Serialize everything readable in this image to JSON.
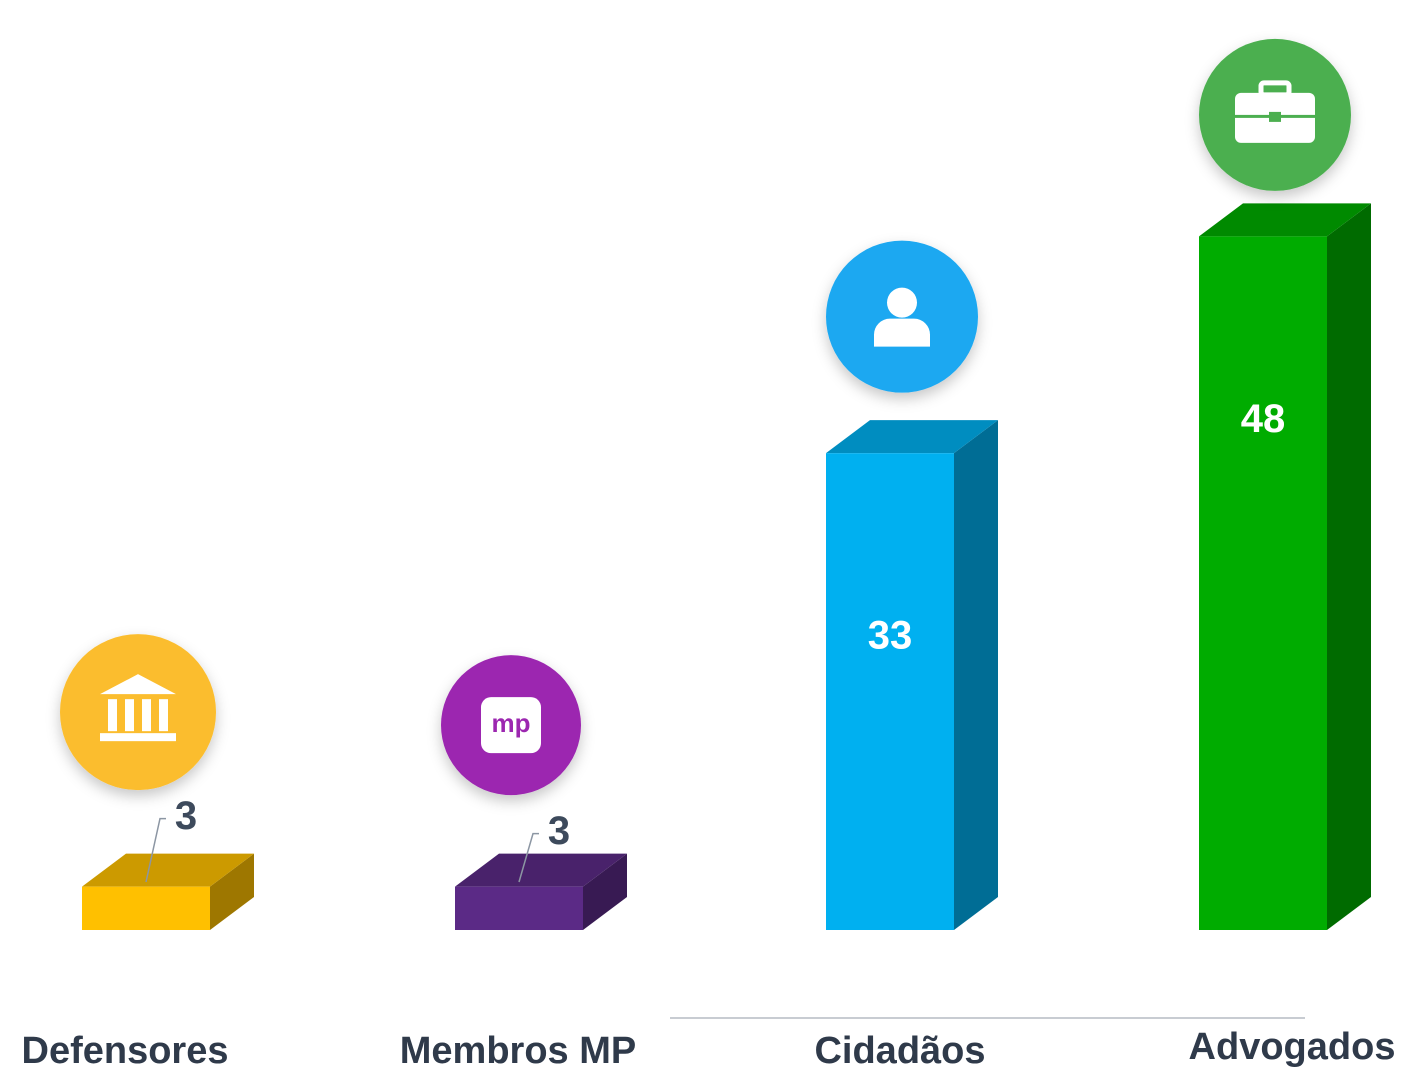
{
  "chart_data": {
    "type": "bar3d",
    "categories": [
      "Defensores",
      "Membros MP",
      "Cidadãos",
      "Advogados"
    ],
    "values": [
      3,
      3,
      33,
      48
    ],
    "colors": [
      "#ffc000",
      "#5b2a86",
      "#00b0f0",
      "#00ac00"
    ],
    "icon_colors": [
      "#fbbd2e",
      "#9c27b0",
      "#1ea8f1",
      "#4caf50"
    ]
  }
}
